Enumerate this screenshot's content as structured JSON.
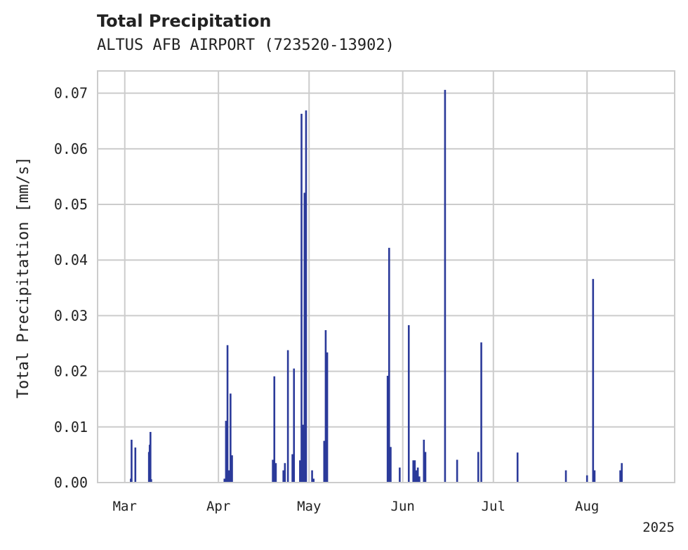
{
  "chart_data": {
    "type": "bar",
    "title": "Total Precipitation",
    "subtitle": "ALTUS AFB AIRPORT (723520-13902)",
    "xlabel": "",
    "ylabel": "Total Precipitation [mm/s]",
    "ylim": [
      0,
      0.074
    ],
    "xlim": [
      "2025-02-20",
      "2025-08-30"
    ],
    "x_ticks": [
      {
        "date": "2025-03-01",
        "label": "Mar"
      },
      {
        "date": "2025-04-01",
        "label": "Apr"
      },
      {
        "date": "2025-05-01",
        "label": "May"
      },
      {
        "date": "2025-06-01",
        "label": "Jun"
      },
      {
        "date": "2025-07-01",
        "label": "Jul"
      },
      {
        "date": "2025-08-01",
        "label": "Aug"
      }
    ],
    "x_offset_label": "2025",
    "y_ticks": [
      {
        "value": 0.0,
        "label": "0.00"
      },
      {
        "value": 0.01,
        "label": "0.01"
      },
      {
        "value": 0.02,
        "label": "0.02"
      },
      {
        "value": 0.03,
        "label": "0.03"
      },
      {
        "value": 0.04,
        "label": "0.04"
      },
      {
        "value": 0.05,
        "label": "0.05"
      },
      {
        "value": 0.06,
        "label": "0.06"
      },
      {
        "value": 0.07,
        "label": "0.07"
      }
    ],
    "grid": true,
    "bar_color": "#2b3a9a",
    "grid_color": "#cccccc",
    "series": [
      {
        "x": [
          "2025-03-03 00:00",
          "2025-03-03 06:00",
          "2025-03-04 12:00",
          "2025-03-09 00:00",
          "2025-03-09 06:00",
          "2025-03-09 12:00",
          "2025-03-09 18:00",
          "2025-04-03 00:00",
          "2025-04-03 12:00",
          "2025-04-04 00:00",
          "2025-04-04 12:00",
          "2025-04-05 00:00",
          "2025-04-05 12:00",
          "2025-04-19 00:00",
          "2025-04-19 12:00",
          "2025-04-20 00:00",
          "2025-04-22 12:00",
          "2025-04-23 00:00",
          "2025-04-24 00:00",
          "2025-04-25 12:00",
          "2025-04-26 00:00",
          "2025-04-28 00:00",
          "2025-04-28 12:00",
          "2025-04-29 00:00",
          "2025-04-29 12:00",
          "2025-04-30 00:00",
          "2025-05-02 00:00",
          "2025-05-02 12:00",
          "2025-05-06 00:00",
          "2025-05-06 12:00",
          "2025-05-07 00:00",
          "2025-05-27 00:00",
          "2025-05-27 12:00",
          "2025-05-28 00:00",
          "2025-05-31 00:00",
          "2025-06-03 00:00",
          "2025-06-04 12:00",
          "2025-06-05 00:00",
          "2025-06-05 12:00",
          "2025-06-06 00:00",
          "2025-06-06 12:00",
          "2025-06-08 00:00",
          "2025-06-08 12:00",
          "2025-06-15 00:00",
          "2025-06-19 00:00",
          "2025-06-26 00:00",
          "2025-06-27 00:00",
          "2025-07-09 00:00",
          "2025-07-25 00:00",
          "2025-08-01 00:00",
          "2025-08-03 00:00",
          "2025-08-03 12:00",
          "2025-08-12 00:00",
          "2025-08-12 12:00"
        ],
        "values": [
          0.0007,
          0.0077,
          0.0063,
          0.0055,
          0.0068,
          0.0091,
          0.0006,
          0.0007,
          0.0111,
          0.0247,
          0.0022,
          0.016,
          0.0049,
          0.0041,
          0.0191,
          0.0035,
          0.0022,
          0.0035,
          0.0238,
          0.0051,
          0.0205,
          0.004,
          0.0663,
          0.0104,
          0.0521,
          0.0669,
          0.0022,
          0.0007,
          0.0075,
          0.0274,
          0.0234,
          0.0192,
          0.0422,
          0.0064,
          0.0027,
          0.0283,
          0.004,
          0.004,
          0.0022,
          0.0027,
          0.0011,
          0.0077,
          0.0055,
          0.0706,
          0.0041,
          0.0055,
          0.0252,
          0.0054,
          0.0022,
          0.0013,
          0.0366,
          0.0022,
          0.0022,
          0.0035
        ]
      }
    ]
  }
}
